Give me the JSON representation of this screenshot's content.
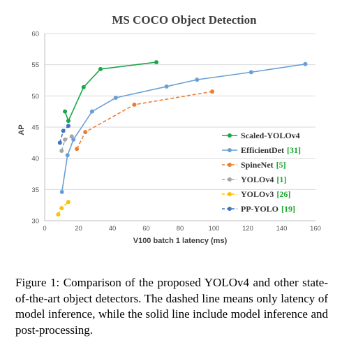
{
  "chart_data": {
    "type": "line",
    "title": "MS COCO Object Detection",
    "xlabel": "V100 batch 1 latency (ms)",
    "ylabel": "AP",
    "xlim": [
      0,
      160
    ],
    "ylim": [
      30,
      60
    ],
    "xticks": [
      "0",
      "20",
      "40",
      "60",
      "80",
      "100",
      "120",
      "140",
      "160"
    ],
    "yticks": [
      "30",
      "35",
      "40",
      "45",
      "50",
      "55",
      "60"
    ],
    "grid": "horizontal",
    "legend_position": "right",
    "series": [
      {
        "name": "Scaled-YOLOv4",
        "ref": "",
        "color": "#1aa64a",
        "dash": false,
        "x": [
          12,
          14,
          23,
          33,
          66
        ],
        "y": [
          47.5,
          46,
          51.4,
          54.3,
          55.4
        ]
      },
      {
        "name": "EfficientDet",
        "ref": "[31]",
        "color": "#6a9fd4",
        "dash": false,
        "x": [
          10.2,
          13.5,
          17,
          28,
          42,
          72,
          90,
          122,
          154
        ],
        "y": [
          34.6,
          40.5,
          43,
          47.5,
          49.7,
          51.5,
          52.6,
          53.8,
          55.1
        ]
      },
      {
        "name": "SpineNet",
        "ref": "[5]",
        "color": "#ed7d31",
        "dash": true,
        "x": [
          19,
          24,
          53,
          99
        ],
        "y": [
          41.5,
          44.2,
          48.6,
          50.7
        ]
      },
      {
        "name": "YOLOv4",
        "ref": "[1]",
        "color": "#a5a5a5",
        "dash": true,
        "x": [
          10,
          12,
          16
        ],
        "y": [
          41.2,
          43,
          43.5
        ]
      },
      {
        "name": "YOLOv3",
        "ref": "[26]",
        "color": "#ffc000",
        "dash": true,
        "x": [
          8,
          10,
          14
        ],
        "y": [
          31,
          32,
          33
        ]
      },
      {
        "name": "PP-YOLO",
        "ref": "[19]",
        "color": "#4472c4",
        "dash": true,
        "x": [
          9,
          11,
          14
        ],
        "y": [
          42.5,
          44.4,
          45.2
        ]
      }
    ]
  },
  "caption": "Figure 1: Comparison of the proposed YOLOv4 and other state-of-the-art object detectors.  The dashed line means only latency of model inference, while the solid line include model inference and post-processing."
}
